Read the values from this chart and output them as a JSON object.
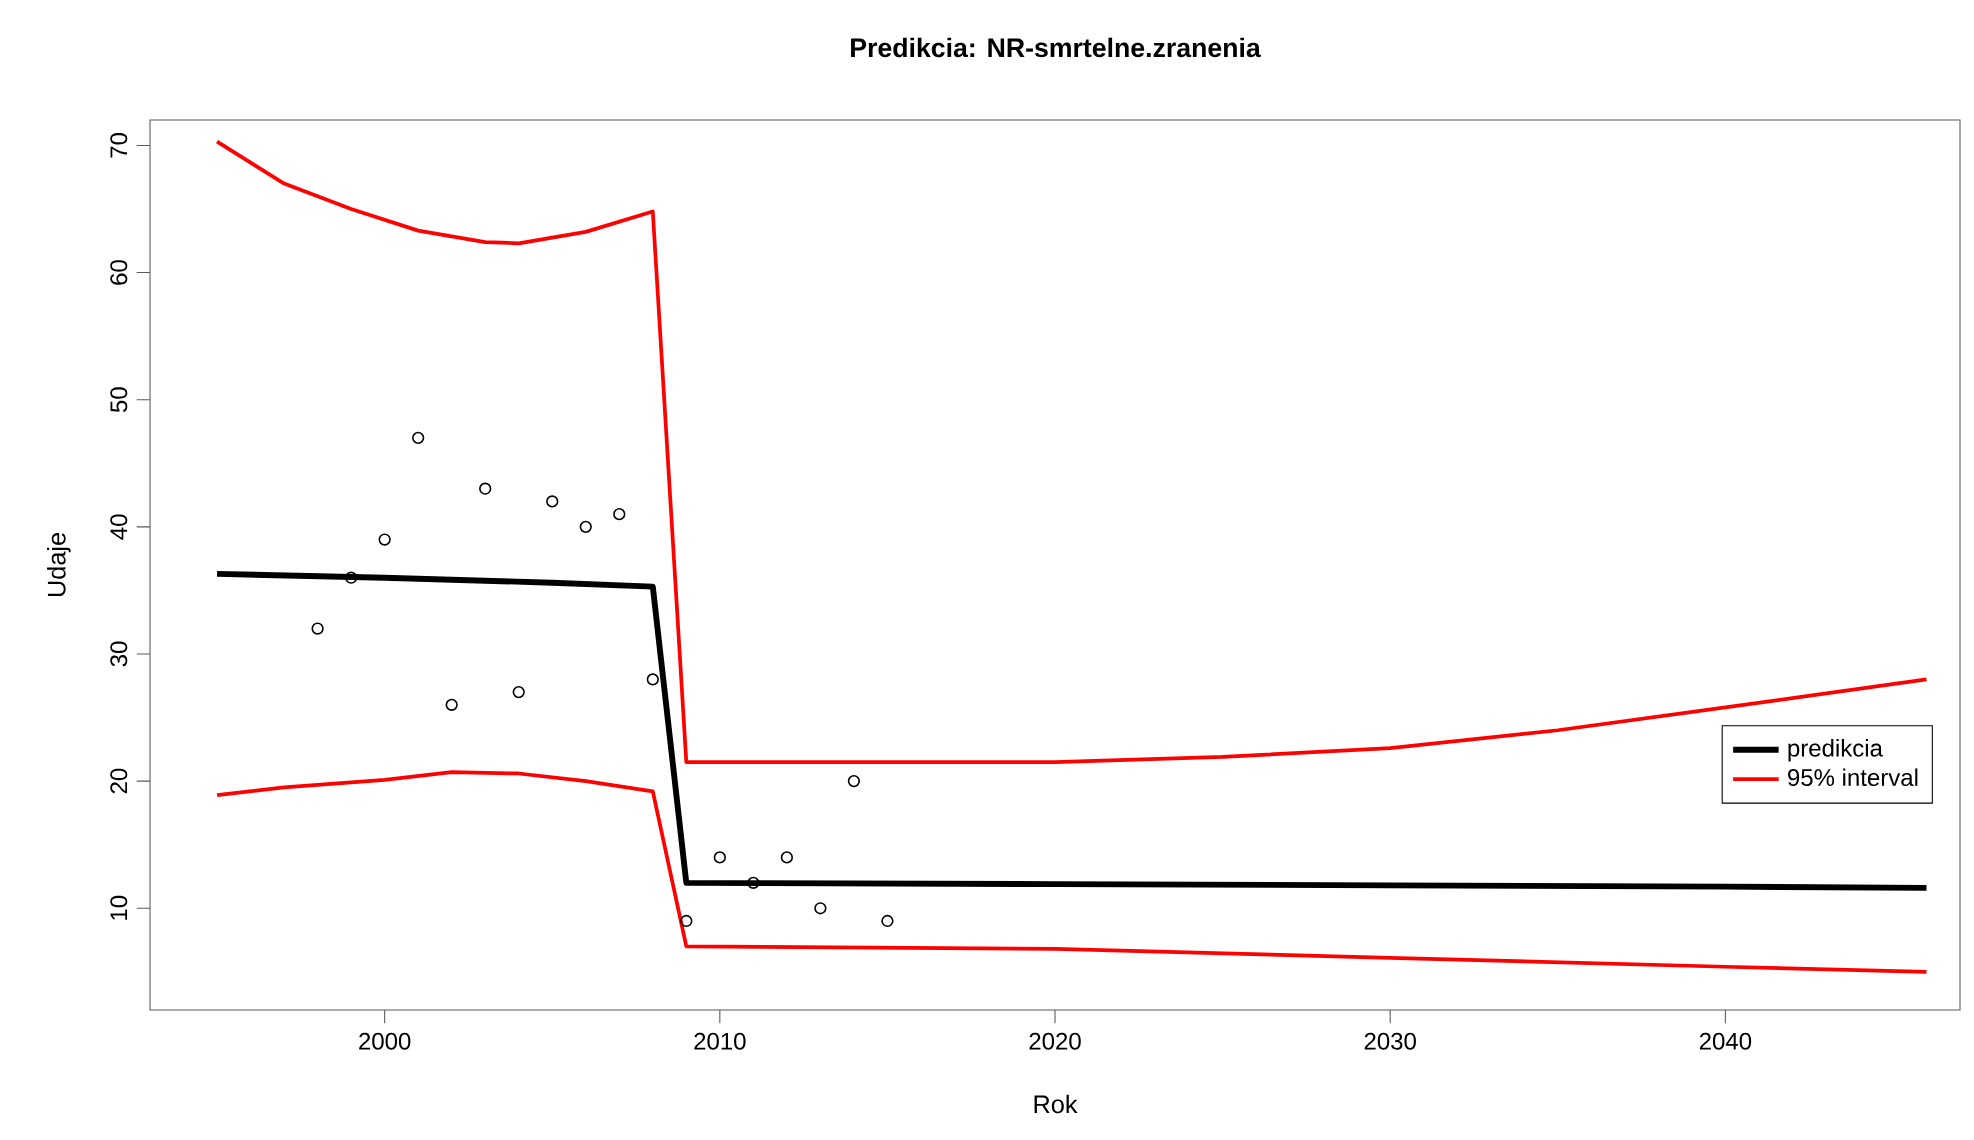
{
  "chart_data": {
    "type": "line",
    "title": "Predikcia: NR-smrtelne.zranenia",
    "xlabel": "Rok",
    "ylabel": "Udaje",
    "xlim": [
      1993,
      2047
    ],
    "ylim": [
      2,
      72
    ],
    "xticks": [
      2000,
      2010,
      2020,
      2030,
      2040
    ],
    "yticks": [
      10,
      20,
      30,
      40,
      50,
      60,
      70
    ],
    "grid": false,
    "legend": "right",
    "series": [
      {
        "name": "predikcia",
        "color": "#000000",
        "x": [
          1995,
          2000,
          2005,
          2008,
          2009,
          2020,
          2030,
          2040,
          2046
        ],
        "values": [
          36.3,
          36.0,
          35.6,
          35.3,
          12.0,
          11.9,
          11.8,
          11.7,
          11.6
        ]
      },
      {
        "name": "95% interval",
        "color": "#ff0000",
        "x": [
          1995,
          1997,
          1999,
          2001,
          2003,
          2004,
          2006,
          2008,
          2009,
          2020,
          2025,
          2030,
          2035,
          2040,
          2046
        ],
        "values": [
          70.3,
          67.0,
          65.0,
          63.3,
          62.4,
          62.3,
          63.2,
          64.8,
          21.5,
          21.5,
          21.9,
          22.6,
          24.0,
          25.8,
          28.0
        ]
      },
      {
        "color": "#ff0000",
        "x": [
          1995,
          1997,
          2000,
          2002,
          2004,
          2006,
          2008,
          2009,
          2020,
          2030,
          2040,
          2046
        ],
        "values": [
          18.9,
          19.5,
          20.1,
          20.7,
          20.6,
          20.0,
          19.2,
          7.0,
          6.8,
          6.1,
          5.4,
          5.0
        ]
      },
      {
        "color": "#000000",
        "type": "scatter",
        "marker": "circle",
        "x": [
          1998,
          1999,
          2000,
          2001,
          2002,
          2003,
          2004,
          2005,
          2006,
          2007,
          2008,
          2009,
          2010,
          2011,
          2012,
          2013,
          2014,
          2015
        ],
        "values": [
          32,
          36,
          39,
          47,
          26,
          43,
          27,
          42,
          40,
          41,
          28,
          9,
          14,
          12,
          14,
          10,
          20,
          9
        ]
      }
    ]
  }
}
